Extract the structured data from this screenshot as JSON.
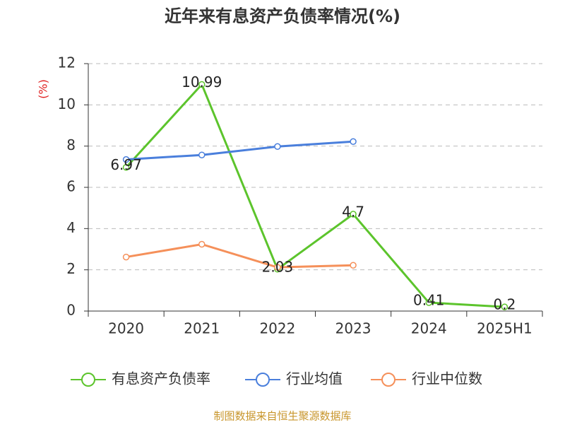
{
  "chart_data": {
    "type": "line",
    "title": "近年来有息资产负债率情况(%)",
    "y_label": "(%)",
    "categories": [
      "2020",
      "2021",
      "2022",
      "2023",
      "2024",
      "2025H1"
    ],
    "series": [
      {
        "name": "有息资产负债率",
        "color": "#5cc42c",
        "values": [
          6.97,
          10.99,
          2.03,
          4.7,
          0.41,
          0.2
        ],
        "show_labels": true
      },
      {
        "name": "行业均值",
        "color": "#4a7fdc",
        "values": [
          7.35,
          7.57,
          7.98,
          8.22,
          null,
          null
        ]
      },
      {
        "name": "行业中位数",
        "color": "#f5905a",
        "values": [
          2.62,
          3.24,
          2.12,
          2.22,
          null,
          null
        ]
      }
    ],
    "ylim": [
      0,
      12
    ],
    "yticks": [
      0,
      2,
      4,
      6,
      8,
      10,
      12
    ],
    "grid": true,
    "source": "制图数据来自恒生聚源数据库"
  }
}
